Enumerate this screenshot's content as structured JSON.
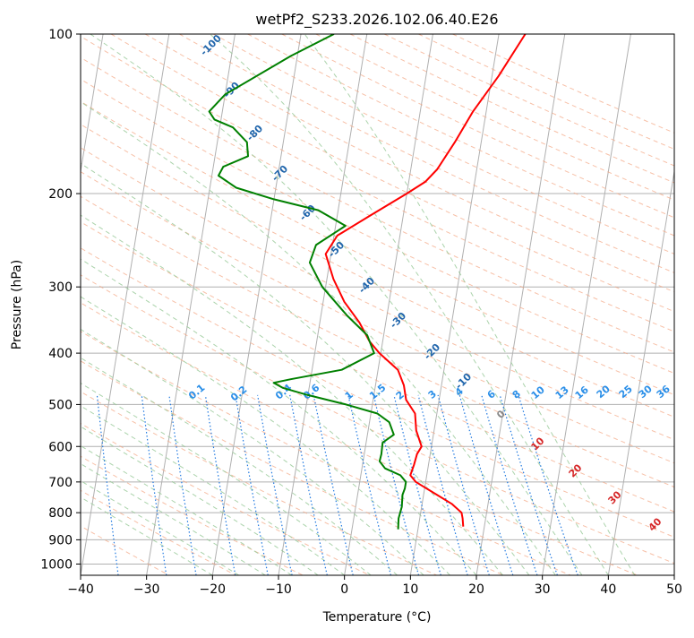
{
  "chart_data": {
    "type": "line",
    "title": "wetPf2_S233.2026.102.06.40.E26",
    "xlabel": "Temperature (°C)",
    "ylabel": "Pressure (hPa)",
    "xlim": [
      -40,
      50
    ],
    "ylim": [
      1050,
      100
    ],
    "y_scale": "log",
    "x_ticks": [
      -40,
      -30,
      -20,
      -10,
      0,
      10,
      20,
      30,
      40,
      50
    ],
    "y_ticks": [
      100,
      200,
      300,
      400,
      500,
      600,
      700,
      800,
      900,
      1000
    ],
    "grid": true,
    "skew_t": true,
    "isotherm_step": 10,
    "series": [
      {
        "color": "#ff0000",
        "p": [
          850,
          820,
          800,
          770,
          740,
          700,
          680,
          650,
          620,
          600,
          560,
          520,
          490,
          460,
          430,
          400,
          380,
          350,
          320,
          290,
          260,
          240,
          220,
          200,
          190,
          180,
          160,
          140,
          120,
          100
        ],
        "t": [
          16.8,
          16.5,
          16.2,
          14.5,
          12,
          8.5,
          7.5,
          7.8,
          8,
          8.5,
          7.3,
          6.7,
          5,
          4.3,
          3,
          -0.2,
          -2,
          -4,
          -6.8,
          -9,
          -10.8,
          -9.5,
          -5,
          0,
          2.5,
          4,
          6,
          8,
          11,
          14
        ]
      },
      {
        "color": "#008000",
        "p": [
          860,
          820,
          780,
          740,
          720,
          700,
          680,
          660,
          640,
          620,
          590,
          570,
          540,
          520,
          500,
          480,
          465,
          455,
          448,
          430,
          400,
          370,
          340,
          300,
          270,
          250,
          230,
          215,
          205,
          195,
          185,
          178,
          170,
          160,
          150,
          145,
          140,
          130,
          110,
          100
        ],
        "t": [
          7,
          6.8,
          7,
          6.8,
          7,
          7,
          6,
          3.5,
          2.5,
          2.6,
          2.5,
          4,
          3,
          1,
          -4,
          -10,
          -14,
          -15.5,
          -13,
          -5.5,
          -1,
          -2.5,
          -6,
          -10.5,
          -13,
          -12.5,
          -8.5,
          -13,
          -20,
          -26,
          -29,
          -28.5,
          -25,
          -25.5,
          -28,
          -31,
          -32,
          -30,
          -21,
          -15
        ]
      }
    ],
    "mixing_ratio_labels": [
      "0.1",
      "0.2",
      "0.4",
      "0.6",
      "1",
      "1.5",
      "2",
      "3",
      "4",
      "6",
      "8",
      "10",
      "13",
      "16",
      "20",
      "25",
      "30",
      "36"
    ],
    "dry_adiabat_labels": [
      "-100",
      "-90",
      "-80",
      "-70",
      "-60",
      "-50",
      "-40",
      "-30",
      "-20",
      "-10"
    ],
    "moist_adiabat_labels": [
      "0",
      "10",
      "20",
      "30",
      "40"
    ],
    "colors": {
      "temperature": "#ff0000",
      "dewpoint": "#008000",
      "isotherm": "#b0b0b0",
      "dry_adiabat": "#f4a582",
      "moist_adiabat": "#96c896",
      "mixing_ratio": "#1f78e0",
      "mixing_label": "#2b8fe8",
      "dry_label": "#2166ac",
      "moist_label": "#d62728"
    }
  }
}
